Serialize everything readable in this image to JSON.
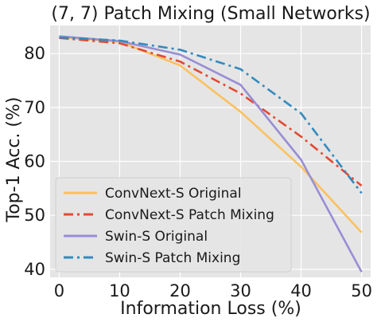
{
  "chart_data": {
    "type": "line",
    "title": "(7, 7) Patch Mixing (Small Networks)",
    "xlabel": "Information Loss (%)",
    "ylabel": "Top-1 Acc. (%)",
    "x": [
      0,
      10,
      20,
      30,
      40,
      50
    ],
    "xticks": [
      "0",
      "10",
      "20",
      "30",
      "40",
      "50"
    ],
    "yticks": [
      "40",
      "50",
      "60",
      "70",
      "80"
    ],
    "xlim": [
      -1.5,
      51.5
    ],
    "ylim": [
      38.5,
      85.2
    ],
    "grid": true,
    "legend_position": "lower-left",
    "series": [
      {
        "name": "ConvNext-S Original",
        "values": [
          83.0,
          82.2,
          77.8,
          69.2,
          59.0,
          46.8
        ],
        "color": "#fbc15e",
        "dash": "solid"
      },
      {
        "name": "ConvNext-S Patch Mixing",
        "values": [
          82.9,
          81.9,
          78.5,
          72.6,
          64.6,
          55.5
        ],
        "color": "#e24a33",
        "dash": "dashdot"
      },
      {
        "name": "Swin-S Original",
        "values": [
          83.2,
          82.3,
          79.8,
          74.2,
          60.3,
          39.5
        ],
        "color": "#988ed5",
        "dash": "solid"
      },
      {
        "name": "Swin-S Patch Mixing",
        "values": [
          83.0,
          82.4,
          80.7,
          77.1,
          68.9,
          54.1
        ],
        "color": "#348abd",
        "dash": "dashdot"
      }
    ]
  }
}
